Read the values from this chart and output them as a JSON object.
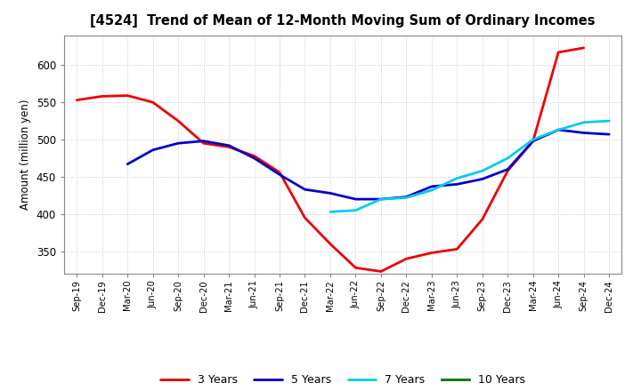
{
  "title": "[4524]  Trend of Mean of 12-Month Moving Sum of Ordinary Incomes",
  "ylabel": "Amount (million yen)",
  "background_color": "#ffffff",
  "grid_color": "#bbbbbb",
  "ylim": [
    320,
    640
  ],
  "yticks": [
    350,
    400,
    450,
    500,
    550,
    600
  ],
  "x_labels": [
    "Sep-19",
    "Dec-19",
    "Mar-20",
    "Jun-20",
    "Sep-20",
    "Dec-20",
    "Mar-21",
    "Jun-21",
    "Sep-21",
    "Dec-21",
    "Mar-22",
    "Jun-22",
    "Sep-22",
    "Dec-22",
    "Mar-23",
    "Jun-23",
    "Sep-23",
    "Dec-23",
    "Mar-24",
    "Jun-24",
    "Sep-24",
    "Dec-24"
  ],
  "series": {
    "3_years": {
      "color": "#ee0000",
      "label": "3 Years",
      "x": [
        0,
        1,
        2,
        3,
        4,
        5,
        6,
        7,
        8,
        9,
        10,
        11,
        12,
        13,
        14,
        15,
        16,
        17,
        18,
        19,
        20
      ],
      "y": [
        553,
        558,
        559,
        550,
        525,
        495,
        490,
        478,
        456,
        395,
        360,
        328,
        323,
        340,
        348,
        353,
        393,
        458,
        498,
        617,
        623
      ]
    },
    "5_years": {
      "color": "#0000cc",
      "label": "5 Years",
      "x": [
        2,
        3,
        4,
        5,
        6,
        7,
        8,
        9,
        10,
        11,
        12,
        13,
        14,
        15,
        16,
        17,
        18,
        19,
        20,
        21
      ],
      "y": [
        467,
        486,
        495,
        498,
        492,
        475,
        453,
        433,
        428,
        420,
        420,
        423,
        437,
        440,
        447,
        460,
        498,
        513,
        509,
        507
      ]
    },
    "7_years": {
      "color": "#00ccee",
      "label": "7 Years",
      "x": [
        10,
        11,
        12,
        13,
        14,
        15,
        16,
        17,
        18,
        19,
        20,
        21
      ],
      "y": [
        403,
        405,
        420,
        422,
        432,
        448,
        458,
        475,
        500,
        513,
        523,
        525
      ]
    },
    "10_years": {
      "color": "#007700",
      "label": "10 Years",
      "x": [],
      "y": []
    }
  }
}
